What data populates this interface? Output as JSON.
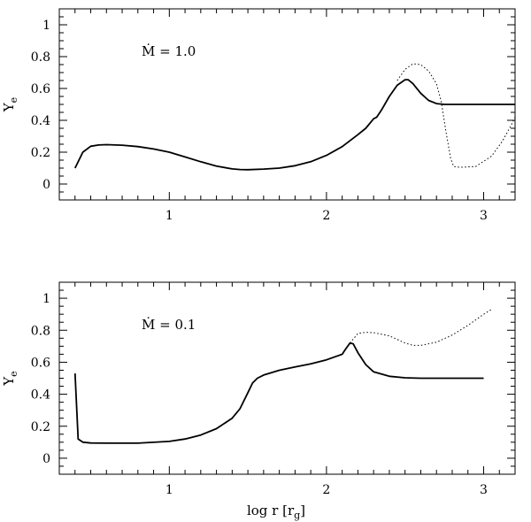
{
  "figure": {
    "xlabel_main": "log r [r",
    "xlabel_sub": "g",
    "xlabel_close": "]"
  },
  "chart_data": [
    {
      "type": "line",
      "panel": "top",
      "ylabel_main": "Y",
      "ylabel_sub": "e",
      "annotation": "Ṁ = 1.0",
      "xlim": [
        0.3,
        3.2
      ],
      "ylim": [
        -0.1,
        1.1
      ],
      "x_ticks": [
        1,
        2,
        3
      ],
      "y_ticks": [
        0,
        0.2,
        0.4,
        0.6,
        0.8,
        1
      ],
      "x_ticks_labeled": true,
      "grid": false,
      "series": [
        {
          "style": "solid",
          "points": [
            [
              0.4,
              0.1
            ],
            [
              0.45,
              0.2
            ],
            [
              0.5,
              0.237
            ],
            [
              0.55,
              0.245
            ],
            [
              0.6,
              0.247
            ],
            [
              0.7,
              0.244
            ],
            [
              0.8,
              0.235
            ],
            [
              0.9,
              0.22
            ],
            [
              1.0,
              0.2
            ],
            [
              1.1,
              0.17
            ],
            [
              1.2,
              0.14
            ],
            [
              1.3,
              0.113
            ],
            [
              1.4,
              0.095
            ],
            [
              1.45,
              0.091
            ],
            [
              1.5,
              0.09
            ],
            [
              1.6,
              0.094
            ],
            [
              1.7,
              0.1
            ],
            [
              1.8,
              0.115
            ],
            [
              1.9,
              0.14
            ],
            [
              2.0,
              0.18
            ],
            [
              2.1,
              0.235
            ],
            [
              2.2,
              0.31
            ],
            [
              2.25,
              0.35
            ],
            [
              2.3,
              0.41
            ],
            [
              2.32,
              0.42
            ],
            [
              2.35,
              0.465
            ],
            [
              2.4,
              0.55
            ],
            [
              2.45,
              0.62
            ],
            [
              2.5,
              0.655
            ],
            [
              2.52,
              0.655
            ],
            [
              2.55,
              0.63
            ],
            [
              2.6,
              0.57
            ],
            [
              2.65,
              0.525
            ],
            [
              2.7,
              0.505
            ],
            [
              2.75,
              0.5
            ],
            [
              2.8,
              0.5
            ],
            [
              3.0,
              0.5
            ],
            [
              3.2,
              0.5
            ]
          ]
        },
        {
          "style": "dotted",
          "points": [
            [
              2.45,
              0.65
            ],
            [
              2.5,
              0.72
            ],
            [
              2.55,
              0.755
            ],
            [
              2.6,
              0.75
            ],
            [
              2.65,
              0.71
            ],
            [
              2.7,
              0.63
            ],
            [
              2.73,
              0.52
            ],
            [
              2.76,
              0.33
            ],
            [
              2.79,
              0.16
            ],
            [
              2.81,
              0.11
            ],
            [
              2.85,
              0.105
            ],
            [
              2.95,
              0.11
            ],
            [
              3.05,
              0.175
            ],
            [
              3.12,
              0.27
            ],
            [
              3.17,
              0.36
            ],
            [
              3.2,
              0.42
            ]
          ]
        }
      ]
    },
    {
      "type": "line",
      "panel": "bottom",
      "ylabel_main": "Y",
      "ylabel_sub": "e",
      "annotation": "Ṁ = 0.1",
      "xlim": [
        0.3,
        3.2
      ],
      "ylim": [
        -0.1,
        1.1
      ],
      "x_ticks": [
        1,
        2,
        3
      ],
      "y_ticks": [
        0,
        0.2,
        0.4,
        0.6,
        0.8,
        1
      ],
      "x_ticks_labeled": true,
      "grid": false,
      "series": [
        {
          "style": "solid",
          "points": [
            [
              0.4,
              0.53
            ],
            [
              0.42,
              0.12
            ],
            [
              0.45,
              0.1
            ],
            [
              0.5,
              0.095
            ],
            [
              0.6,
              0.094
            ],
            [
              0.8,
              0.094
            ],
            [
              1.0,
              0.105
            ],
            [
              1.1,
              0.12
            ],
            [
              1.2,
              0.145
            ],
            [
              1.3,
              0.185
            ],
            [
              1.4,
              0.25
            ],
            [
              1.45,
              0.31
            ],
            [
              1.5,
              0.41
            ],
            [
              1.53,
              0.47
            ],
            [
              1.56,
              0.5
            ],
            [
              1.6,
              0.52
            ],
            [
              1.7,
              0.55
            ],
            [
              1.8,
              0.57
            ],
            [
              1.9,
              0.59
            ],
            [
              2.0,
              0.615
            ],
            [
              2.1,
              0.65
            ],
            [
              2.12,
              0.68
            ],
            [
              2.15,
              0.72
            ],
            [
              2.17,
              0.715
            ],
            [
              2.2,
              0.66
            ],
            [
              2.25,
              0.585
            ],
            [
              2.3,
              0.54
            ],
            [
              2.4,
              0.512
            ],
            [
              2.5,
              0.503
            ],
            [
              2.6,
              0.5
            ],
            [
              3.0,
              0.5
            ]
          ]
        },
        {
          "style": "dotted",
          "points": [
            [
              2.15,
              0.72
            ],
            [
              2.2,
              0.78
            ],
            [
              2.25,
              0.787
            ],
            [
              2.3,
              0.785
            ],
            [
              2.4,
              0.765
            ],
            [
              2.5,
              0.72
            ],
            [
              2.55,
              0.705
            ],
            [
              2.6,
              0.705
            ],
            [
              2.7,
              0.725
            ],
            [
              2.8,
              0.77
            ],
            [
              2.9,
              0.83
            ],
            [
              3.0,
              0.9
            ],
            [
              3.05,
              0.93
            ]
          ]
        }
      ]
    }
  ]
}
